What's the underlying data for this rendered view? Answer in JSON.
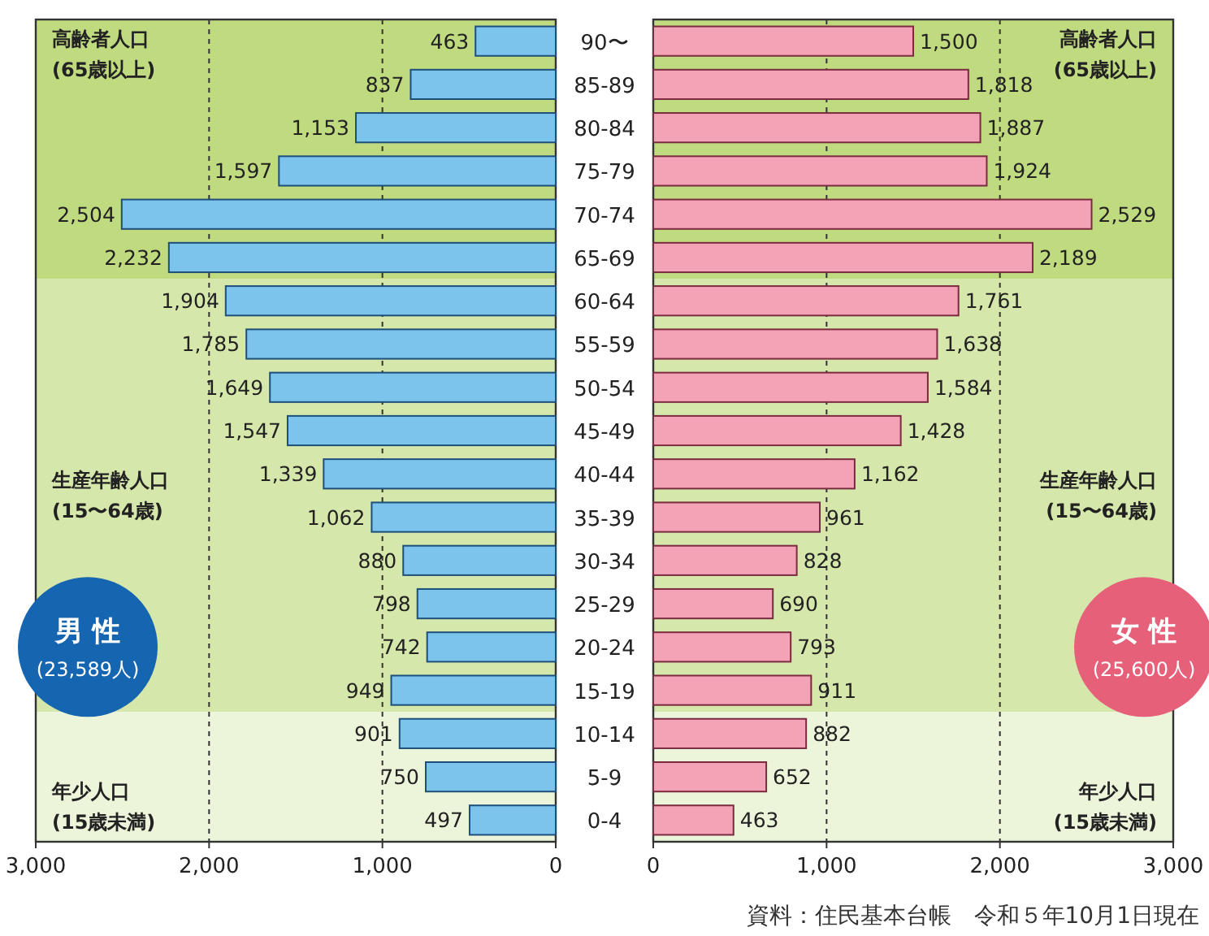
{
  "chart_data": [
    {
      "type": "bar",
      "orientation": "horizontal",
      "categories": [
        "90〜",
        "85-89",
        "80-84",
        "75-79",
        "70-74",
        "65-69",
        "60-64",
        "55-59",
        "50-54",
        "45-49",
        "40-44",
        "35-39",
        "30-34",
        "25-29",
        "20-24",
        "15-19",
        "10-14",
        "5-9",
        "0-4"
      ],
      "values": [
        463,
        837,
        1153,
        1597,
        2504,
        2232,
        1904,
        1785,
        1649,
        1547,
        1339,
        1062,
        880,
        798,
        742,
        949,
        901,
        750,
        497
      ],
      "value_labels": [
        "463",
        "837",
        "1,153",
        "1,597",
        "2,504",
        "2,232",
        "1,904",
        "1,785",
        "1,649",
        "1,547",
        "1,339",
        "1,062",
        "880",
        "798",
        "742",
        "949",
        "901",
        "750",
        "497"
      ],
      "color": "#7cc4ec",
      "xlim": [
        3000,
        0
      ],
      "xticks": [
        {
          "value": 3000,
          "label": "3,000"
        },
        {
          "value": 2000,
          "label": "2,000"
        },
        {
          "value": 1000,
          "label": "1,000"
        },
        0
      ],
      "grid": "x",
      "bands": [
        {
          "axis": "y",
          "from": "90〜",
          "to": "65-69",
          "label": "高齢者人口 (65歳以上)",
          "color": "#c0da80"
        },
        {
          "axis": "y",
          "from": "60-64",
          "to": "15-19",
          "label": "生産年齢人口 (15〜64歳)",
          "color": "#d5e7aa"
        },
        {
          "axis": "y",
          "from": "10-14",
          "to": "0-4",
          "label": "年少人口 (15歳未満)",
          "color": "#ecf4da"
        }
      ],
      "annotations": [
        "男 性",
        "(23,589人)"
      ]
    },
    {
      "type": "bar",
      "orientation": "horizontal",
      "categories": [
        "90〜",
        "85-89",
        "80-84",
        "75-79",
        "70-74",
        "65-69",
        "60-64",
        "55-59",
        "50-54",
        "45-49",
        "40-44",
        "35-39",
        "30-34",
        "25-29",
        "20-24",
        "15-19",
        "10-14",
        "5-9",
        "0-4"
      ],
      "values": [
        1500,
        1818,
        1887,
        1924,
        2529,
        2189,
        1761,
        1638,
        1584,
        1428,
        1162,
        961,
        828,
        690,
        793,
        911,
        882,
        652,
        463
      ],
      "value_labels": [
        "1,500",
        "1,818",
        "1,887",
        "1,924",
        "2,529",
        "2,189",
        "1,761",
        "1,638",
        "1,584",
        "1,428",
        "1,162",
        "961",
        "828",
        "690",
        "793",
        "911",
        "882",
        "652",
        "463"
      ],
      "color": "#f4a3b6",
      "xlim": [
        0,
        3000
      ],
      "xticks": [
        0,
        {
          "value": 1000,
          "label": "1,000"
        },
        {
          "value": 2000,
          "label": "2,000"
        },
        {
          "value": 3000,
          "label": "3,000"
        }
      ],
      "grid": "x",
      "tick_labels": "x",
      "bands": [
        {
          "axis": "y",
          "from": "90〜",
          "to": "65-69",
          "label": "高齢者人口 (65歳以上)",
          "color": "#c0da80"
        },
        {
          "axis": "y",
          "from": "60-64",
          "to": "15-19",
          "label": "生産年齢人口 (15〜64歳)",
          "color": "#d5e7aa"
        },
        {
          "axis": "y",
          "from": "10-14",
          "to": "0-4",
          "label": "年少人口 (15歳未満)",
          "color": "#ecf4da"
        }
      ],
      "annotations": [
        "女 性",
        "(25,600人)",
        "資料：住民基本台帳　令和５年10月1日現在"
      ]
    }
  ]
}
